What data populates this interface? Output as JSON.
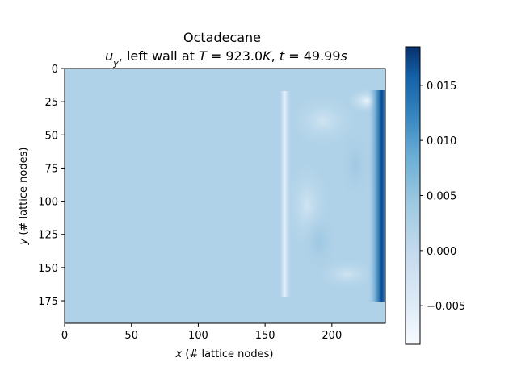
{
  "chart_data": {
    "type": "heatmap",
    "title": "Octadecane",
    "subtitle_parts": [
      {
        "text": "u",
        "italic": true
      },
      {
        "text": "y",
        "italic": true,
        "sub": true
      },
      {
        "text": ", left wall at ",
        "italic": false
      },
      {
        "text": "T",
        "italic": true
      },
      {
        "text": " = 923.0",
        "italic": false
      },
      {
        "text": "K",
        "italic": true
      },
      {
        "text": ", ",
        "italic": false
      },
      {
        "text": "t",
        "italic": true
      },
      {
        "text": " = 49.99",
        "italic": false
      },
      {
        "text": "s",
        "italic": true
      }
    ],
    "xlabel_var": "x",
    "xlabel_rest": " (# lattice nodes)",
    "ylabel_var": "y",
    "ylabel_rest": " (# lattice nodes)",
    "x_range": [
      0,
      240
    ],
    "y_range": [
      0,
      192
    ],
    "y_inverted": true,
    "x_ticks": [
      "0",
      "50",
      "100",
      "150",
      "200"
    ],
    "x_tick_values": [
      0,
      50,
      100,
      150,
      200
    ],
    "y_ticks": [
      "0",
      "25",
      "50",
      "75",
      "100",
      "125",
      "150",
      "175"
    ],
    "y_tick_values": [
      0,
      25,
      50,
      75,
      100,
      125,
      150,
      175
    ],
    "colormap": "Blues",
    "colorbar": {
      "range": [
        -0.0085,
        0.0185
      ],
      "ticks": [
        "0.015",
        "0.010",
        "0.005",
        "0.000",
        "−0.005"
      ],
      "tick_values": [
        0.015,
        0.01,
        0.005,
        0.0,
        -0.005
      ]
    },
    "background_value": 0.0,
    "features": [
      {
        "kind": "melt-front-edge",
        "x": 162,
        "y_start": 18,
        "y_end": 170,
        "value": -0.006
      },
      {
        "kind": "hot-wall-jet",
        "x": 237,
        "y_start": 15,
        "y_end": 175,
        "value": 0.018
      },
      {
        "kind": "top-recirculation",
        "x": 225,
        "y": 25,
        "value": -0.004
      }
    ]
  }
}
